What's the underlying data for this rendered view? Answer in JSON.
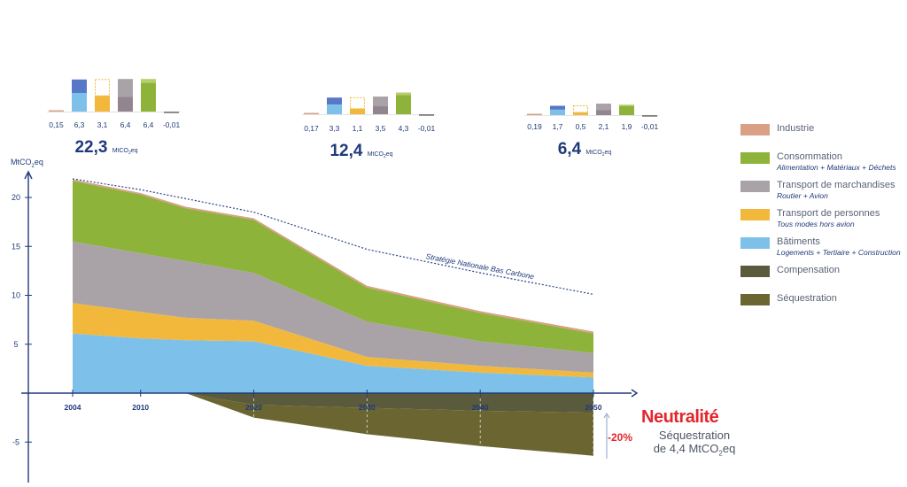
{
  "colors": {
    "industrie": "#d9a086",
    "consommation": "#8db33a",
    "consommation_light": "#b5cf6a",
    "transport_marchandises": "#a9a3a7",
    "transport_marchandises_dark": "#938590",
    "transport_personnes": "#f2b83c",
    "batiments": "#7dc1ea",
    "batiments_dark": "#5878c7",
    "compensation": "#5a5a3c",
    "sequestration": "#6b6631",
    "axis": "#1f3a7a",
    "title_red": "#e3262b"
  },
  "chart_data": [
    {
      "type": "area",
      "ylabel_base": "MtCO",
      "ylabel_sub": "2",
      "ylabel_end": "eq",
      "x_ticks": [
        "2004",
        "2010",
        "2020",
        "2030",
        "2040",
        "2050"
      ],
      "x_tick_values": [
        2004,
        2010,
        2020,
        2030,
        2040,
        2050
      ],
      "y_ticks": [
        "20",
        "15",
        "10",
        "5",
        "-5"
      ],
      "y_tick_values": [
        20,
        15,
        10,
        5,
        -5
      ],
      "ylim": [
        -9,
        23
      ],
      "xlim": [
        1999,
        2053
      ],
      "x": [
        2004,
        2010,
        2014,
        2020,
        2030,
        2040,
        2050
      ],
      "series": [
        {
          "name": "Bâtiments",
          "color_key": "batiments",
          "values": [
            6.1,
            5.6,
            5.4,
            5.3,
            2.8,
            2.1,
            1.6
          ]
        },
        {
          "name": "Transport de personnes",
          "color_key": "transport_personnes",
          "values": [
            3.1,
            2.7,
            2.3,
            2.1,
            0.9,
            0.7,
            0.5
          ]
        },
        {
          "name": "Transport de marchandises",
          "color_key": "transport_marchandises",
          "values": [
            6.3,
            6.0,
            5.8,
            4.9,
            3.6,
            2.5,
            2.0
          ]
        },
        {
          "name": "Consommation",
          "color_key": "consommation",
          "values": [
            6.2,
            6.0,
            5.4,
            5.4,
            3.5,
            2.9,
            2.0
          ]
        },
        {
          "name": "Industrie",
          "color_key": "industrie",
          "values": [
            0.15,
            0.15,
            0.15,
            0.17,
            0.18,
            0.18,
            0.19
          ]
        }
      ],
      "negative_series": [
        {
          "name": "Compensation",
          "color_key": "compensation",
          "x": [
            2004,
            2014,
            2020,
            2030,
            2040,
            2050
          ],
          "values": [
            0,
            0,
            -1.2,
            -1.5,
            -1.8,
            -2.0
          ]
        },
        {
          "name": "Séquestration",
          "color_key": "sequestration",
          "x": [
            2004,
            2014,
            2020,
            2030,
            2040,
            2050
          ],
          "values": [
            0,
            0,
            -1.3,
            -2.7,
            -3.6,
            -4.4
          ]
        }
      ],
      "snbc": {
        "label": "Stratégie Nationale Bas Carbone",
        "x": [
          2004,
          2010,
          2020,
          2030,
          2040,
          2050
        ],
        "values": [
          21.9,
          20.8,
          18.5,
          14.7,
          12.3,
          10.1
        ]
      }
    },
    {
      "type": "bar",
      "year": 2004,
      "categories": [
        "Industrie",
        "Bâtiments",
        "Transport de personnes",
        "Transport de marchandises",
        "Consommation",
        "Compensation"
      ],
      "values": [
        0.15,
        6.3,
        3.1,
        6.4,
        6.4,
        -0.01
      ],
      "labels": [
        "0,15",
        "6,3",
        "3,1",
        "6,4",
        "6,4",
        "-0,01"
      ],
      "total_value": "22,3",
      "total_unit_base": "MtCO",
      "total_unit_sub": "2",
      "total_unit_end": "eq"
    },
    {
      "type": "bar",
      "year": 2030,
      "categories": [
        "Industrie",
        "Bâtiments",
        "Transport de personnes",
        "Transport de marchandises",
        "Consommation",
        "Compensation"
      ],
      "values": [
        0.17,
        3.3,
        1.1,
        3.5,
        4.3,
        -0.01
      ],
      "labels": [
        "0,17",
        "3,3",
        "1,1",
        "3,5",
        "4,3",
        "-0,01"
      ],
      "total_value": "12,4",
      "total_unit_base": "MtCO",
      "total_unit_sub": "2",
      "total_unit_end": "eq"
    },
    {
      "type": "bar",
      "year": 2050,
      "categories": [
        "Industrie",
        "Bâtiments",
        "Transport de personnes",
        "Transport de marchandises",
        "Consommation",
        "Compensation"
      ],
      "values": [
        0.19,
        1.7,
        0.5,
        2.1,
        1.9,
        -0.01
      ],
      "labels": [
        "0,19",
        "1,7",
        "0,5",
        "2,1",
        "1,9",
        "-0,01"
      ],
      "total_value": "6,4",
      "total_unit_base": "MtCO",
      "total_unit_sub": "2",
      "total_unit_end": "eq"
    }
  ],
  "legend": [
    {
      "label": "Industrie",
      "sub": "",
      "color_key": "industrie"
    },
    {
      "label": "Consommation",
      "sub": "Alimentation + Matériaux + Déchets",
      "color_key": "consommation"
    },
    {
      "label": "Transport de marchandises",
      "sub": "Routier + Avion",
      "color_key": "transport_marchandises"
    },
    {
      "label": "Transport de personnes",
      "sub": "Tous modes hors avion",
      "color_key": "transport_personnes"
    },
    {
      "label": "Bâtiments",
      "sub": "Logements + Tertiaire + Construction",
      "color_key": "batiments"
    },
    {
      "label": "Compensation",
      "sub": "",
      "color_key": "compensation"
    },
    {
      "label": "Séquestration",
      "sub": "",
      "color_key": "sequestration"
    }
  ],
  "neutralite": {
    "title": "Neutralité",
    "line1": "Séquestration",
    "line2_base": "de 4,4 MtCO",
    "line2_sub": "2",
    "line2_end": "eq",
    "percent": "-20%"
  }
}
